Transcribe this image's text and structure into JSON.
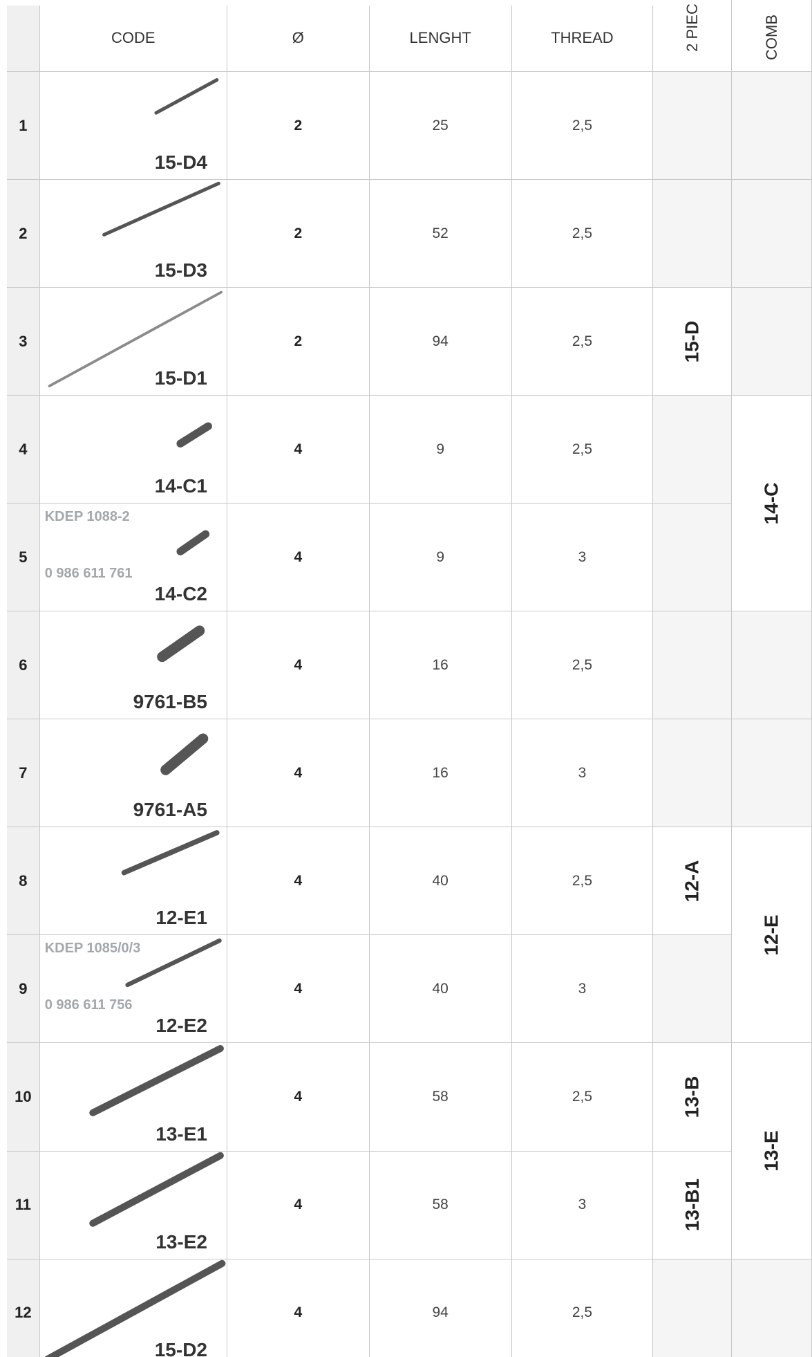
{
  "header": {
    "code": "CODE",
    "diameter": "Ø",
    "length": "LENGHT",
    "thread": "THREAD",
    "two_piece": "2 PIEC",
    "comb": "COMB"
  },
  "rows": [
    {
      "index": "1",
      "code": "15-D4",
      "diameter": "2",
      "length": "25",
      "thread": "2,5",
      "two_piece": null
    },
    {
      "index": "2",
      "code": "15-D3",
      "diameter": "2",
      "length": "52",
      "thread": "2,5",
      "two_piece": null
    },
    {
      "index": "3",
      "code": "15-D1",
      "diameter": "2",
      "length": "94",
      "thread": "2,5",
      "two_piece": "15-D"
    },
    {
      "index": "4",
      "code": "14-C1",
      "diameter": "4",
      "length": "9",
      "thread": "2,5",
      "two_piece": null
    },
    {
      "index": "5",
      "code": "14-C2",
      "part_top": "KDEP 1088-2",
      "part_bottom": "0 986 611 761",
      "diameter": "4",
      "length": "9",
      "thread": "3",
      "two_piece": null
    },
    {
      "index": "6",
      "code": "9761-B5",
      "diameter": "4",
      "length": "16",
      "thread": "2,5",
      "two_piece": null
    },
    {
      "index": "7",
      "code": "9761-A5",
      "diameter": "4",
      "length": "16",
      "thread": "3",
      "two_piece": null
    },
    {
      "index": "8",
      "code": "12-E1",
      "diameter": "4",
      "length": "40",
      "thread": "2,5",
      "two_piece": "12-A"
    },
    {
      "index": "9",
      "code": "12-E2",
      "part_top": "KDEP 1085/0/3",
      "part_bottom": "0 986 611 756",
      "diameter": "4",
      "length": "40",
      "thread": "3",
      "two_piece": null
    },
    {
      "index": "10",
      "code": "13-E1",
      "diameter": "4",
      "length": "58",
      "thread": "2,5",
      "two_piece": "13-B"
    },
    {
      "index": "11",
      "code": "13-E2",
      "diameter": "4",
      "length": "58",
      "thread": "3",
      "two_piece": "13-B1"
    },
    {
      "index": "12",
      "code": "15-D2",
      "diameter": "4",
      "length": "94",
      "thread": "2,5",
      "two_piece": null
    }
  ],
  "comb": [
    null,
    null,
    null,
    "14-C",
    null,
    null,
    "12-E",
    "13-E",
    null
  ]
}
